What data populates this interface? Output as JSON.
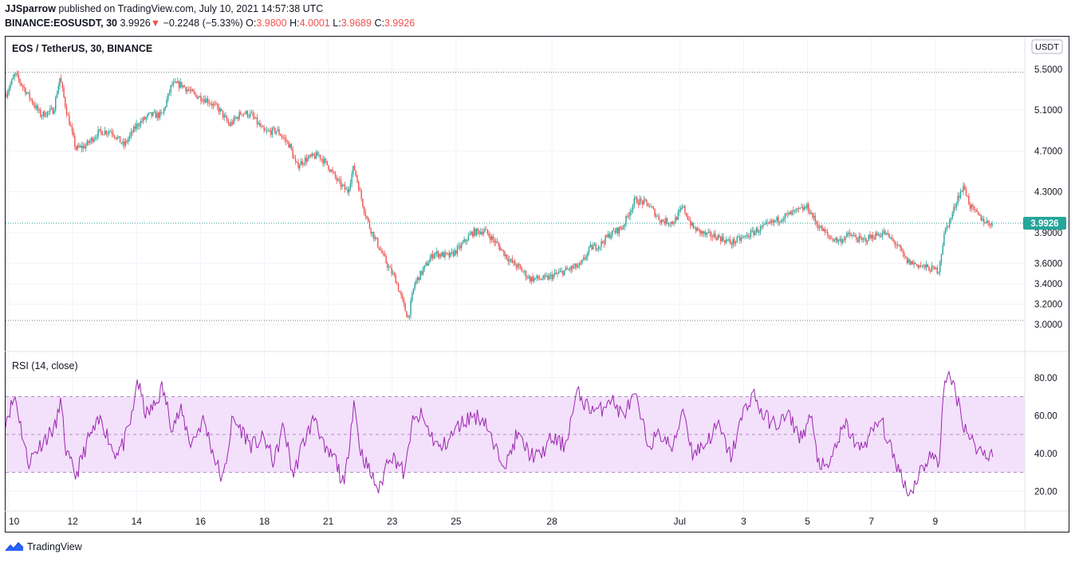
{
  "header": {
    "author": "JJSparrow",
    "published_text": "published on TradingView.com, July 10, 2021 14:57:38 UTC",
    "symbol_line": "BINANCE:EOSUSDT, 30",
    "last": "3.9926",
    "change_arrow": "▼",
    "change": "−0.2248 (−5.33%)",
    "o_label": "O:",
    "o": "3.9800",
    "h_label": "H:",
    "h": "4.0001",
    "l_label": "L:",
    "l": "3.9689",
    "c_label": "C:",
    "c": "3.9926"
  },
  "footer": {
    "brand": "TradingView"
  },
  "chart_data": [
    {
      "type": "candlestick",
      "title": "EOS / TetherUS, 30, BINANCE",
      "currency_badge": "USDT",
      "last_price_label": "3.9926",
      "ylim": [
        2.9,
        5.6
      ],
      "y_ticks": [
        "5.5000",
        "5.1000",
        "4.7000",
        "4.3000",
        "3.9000",
        "3.6000",
        "3.4000",
        "3.2000",
        "3.0000"
      ],
      "y_tick_values": [
        5.5,
        5.1,
        4.7,
        4.3,
        3.9,
        3.6,
        3.4,
        3.2,
        3.0
      ],
      "x_ticks": [
        "10",
        "12",
        "14",
        "16",
        "18",
        "21",
        "23",
        "25",
        "28",
        "Jul",
        "3",
        "5",
        "7",
        "9"
      ],
      "x_tick_days": [
        10,
        12,
        14,
        16,
        18,
        20,
        22,
        24,
        27,
        31,
        33,
        35,
        37,
        39
      ],
      "x_range_days": [
        9.9,
        41.8
      ],
      "high_line": 5.47,
      "low_line": 3.04,
      "colors": {
        "up": "#26a69a",
        "down": "#ef5350"
      },
      "price_path": [
        [
          9.9,
          5.25
        ],
        [
          10.2,
          5.45
        ],
        [
          10.5,
          5.3
        ],
        [
          11.0,
          5.05
        ],
        [
          11.4,
          5.1
        ],
        [
          11.6,
          5.42
        ],
        [
          11.8,
          5.1
        ],
        [
          12.1,
          4.72
        ],
        [
          12.4,
          4.75
        ],
        [
          12.8,
          4.88
        ],
        [
          13.2,
          4.9
        ],
        [
          13.6,
          4.75
        ],
        [
          14.0,
          4.95
        ],
        [
          14.4,
          5.05
        ],
        [
          14.8,
          5.05
        ],
        [
          15.1,
          5.35
        ],
        [
          15.4,
          5.35
        ],
        [
          15.8,
          5.25
        ],
        [
          16.2,
          5.2
        ],
        [
          16.6,
          5.1
        ],
        [
          16.9,
          4.95
        ],
        [
          17.3,
          5.08
        ],
        [
          17.6,
          5.05
        ],
        [
          18.0,
          4.88
        ],
        [
          18.4,
          4.9
        ],
        [
          18.8,
          4.75
        ],
        [
          19.0,
          4.55
        ],
        [
          19.3,
          4.62
        ],
        [
          19.7,
          4.66
        ],
        [
          20.0,
          4.55
        ],
        [
          20.3,
          4.4
        ],
        [
          20.6,
          4.3
        ],
        [
          20.8,
          4.55
        ],
        [
          21.1,
          4.15
        ],
        [
          21.3,
          3.95
        ],
        [
          21.6,
          3.75
        ],
        [
          21.9,
          3.55
        ],
        [
          22.1,
          3.45
        ],
        [
          22.4,
          3.15
        ],
        [
          22.5,
          3.06
        ],
        [
          22.7,
          3.4
        ],
        [
          22.9,
          3.5
        ],
        [
          23.3,
          3.7
        ],
        [
          23.8,
          3.67
        ],
        [
          24.1,
          3.75
        ],
        [
          24.5,
          3.9
        ],
        [
          24.9,
          3.92
        ],
        [
          25.3,
          3.78
        ],
        [
          25.7,
          3.62
        ],
        [
          26.0,
          3.55
        ],
        [
          26.3,
          3.45
        ],
        [
          26.8,
          3.45
        ],
        [
          27.2,
          3.5
        ],
        [
          27.6,
          3.55
        ],
        [
          27.9,
          3.58
        ],
        [
          28.2,
          3.75
        ],
        [
          28.5,
          3.78
        ],
        [
          28.8,
          3.88
        ],
        [
          29.2,
          3.95
        ],
        [
          29.6,
          4.22
        ],
        [
          30.0,
          4.18
        ],
        [
          30.4,
          4.02
        ],
        [
          30.8,
          4.0
        ],
        [
          31.1,
          4.15
        ],
        [
          31.4,
          3.95
        ],
        [
          31.8,
          3.88
        ],
        [
          32.2,
          3.86
        ],
        [
          32.6,
          3.8
        ],
        [
          33.0,
          3.85
        ],
        [
          33.4,
          3.92
        ],
        [
          33.8,
          3.98
        ],
        [
          34.2,
          4.05
        ],
        [
          34.6,
          4.1
        ],
        [
          35.0,
          4.15
        ],
        [
          35.3,
          3.98
        ],
        [
          35.7,
          3.85
        ],
        [
          36.0,
          3.82
        ],
        [
          36.3,
          3.88
        ],
        [
          36.7,
          3.82
        ],
        [
          37.0,
          3.86
        ],
        [
          37.4,
          3.9
        ],
        [
          37.8,
          3.78
        ],
        [
          38.1,
          3.62
        ],
        [
          38.5,
          3.58
        ],
        [
          38.8,
          3.55
        ],
        [
          39.1,
          3.53
        ],
        [
          39.3,
          3.92
        ],
        [
          39.5,
          4.05
        ],
        [
          39.7,
          4.25
        ],
        [
          39.9,
          4.35
        ],
        [
          40.1,
          4.15
        ],
        [
          40.4,
          4.05
        ],
        [
          40.6,
          4.0
        ],
        [
          40.8,
          3.99
        ]
      ],
      "candle_count": 720
    },
    {
      "type": "line",
      "title": "RSI (14, close)",
      "ylim": [
        10,
        90
      ],
      "y_ticks": [
        "80.00",
        "60.00",
        "40.00",
        "20.00"
      ],
      "y_tick_values": [
        80,
        60,
        40,
        20
      ],
      "bands": {
        "upper": 70,
        "middle": 50,
        "lower": 30
      },
      "colors": {
        "line": "#9c27b0",
        "band_fill": "#f3e0fb",
        "band_line": "#b28cc4"
      },
      "rsi_path": [
        [
          9.9,
          58
        ],
        [
          10.2,
          70
        ],
        [
          10.6,
          35
        ],
        [
          11.0,
          45
        ],
        [
          11.5,
          55
        ],
        [
          11.6,
          70
        ],
        [
          11.8,
          40
        ],
        [
          12.1,
          28
        ],
        [
          12.5,
          48
        ],
        [
          12.9,
          58
        ],
        [
          13.3,
          40
        ],
        [
          13.6,
          45
        ],
        [
          13.9,
          62
        ],
        [
          14.0,
          80
        ],
        [
          14.3,
          60
        ],
        [
          14.6,
          66
        ],
        [
          14.8,
          75
        ],
        [
          15.1,
          55
        ],
        [
          15.4,
          62
        ],
        [
          15.7,
          45
        ],
        [
          16.1,
          58
        ],
        [
          16.4,
          40
        ],
        [
          16.7,
          25
        ],
        [
          17.0,
          58
        ],
        [
          17.3,
          52
        ],
        [
          17.6,
          44
        ],
        [
          18.0,
          48
        ],
        [
          18.3,
          35
        ],
        [
          18.6,
          55
        ],
        [
          18.9,
          28
        ],
        [
          19.2,
          45
        ],
        [
          19.6,
          60
        ],
        [
          19.9,
          40
        ],
        [
          20.2,
          38
        ],
        [
          20.5,
          22
        ],
        [
          20.8,
          68
        ],
        [
          21.0,
          42
        ],
        [
          21.3,
          30
        ],
        [
          21.6,
          20
        ],
        [
          21.9,
          40
        ],
        [
          22.2,
          35
        ],
        [
          22.4,
          28
        ],
        [
          22.6,
          55
        ],
        [
          22.9,
          60
        ],
        [
          23.2,
          50
        ],
        [
          23.5,
          42
        ],
        [
          23.8,
          48
        ],
        [
          24.1,
          55
        ],
        [
          24.5,
          60
        ],
        [
          24.9,
          58
        ],
        [
          25.2,
          42
        ],
        [
          25.6,
          35
        ],
        [
          25.9,
          50
        ],
        [
          26.3,
          40
        ],
        [
          26.6,
          38
        ],
        [
          27.0,
          48
        ],
        [
          27.4,
          44
        ],
        [
          27.8,
          72
        ],
        [
          28.1,
          65
        ],
        [
          28.5,
          62
        ],
        [
          28.8,
          70
        ],
        [
          29.2,
          60
        ],
        [
          29.6,
          70
        ],
        [
          30.0,
          45
        ],
        [
          30.4,
          50
        ],
        [
          30.8,
          42
        ],
        [
          31.1,
          65
        ],
        [
          31.4,
          40
        ],
        [
          31.8,
          45
        ],
        [
          32.2,
          55
        ],
        [
          32.6,
          38
        ],
        [
          33.0,
          62
        ],
        [
          33.3,
          72
        ],
        [
          33.6,
          60
        ],
        [
          34.0,
          55
        ],
        [
          34.4,
          60
        ],
        [
          34.8,
          48
        ],
        [
          35.1,
          60
        ],
        [
          35.3,
          38
        ],
        [
          35.6,
          30
        ],
        [
          35.9,
          45
        ],
        [
          36.2,
          55
        ],
        [
          36.6,
          42
        ],
        [
          36.9,
          48
        ],
        [
          37.3,
          58
        ],
        [
          37.6,
          42
        ],
        [
          37.9,
          30
        ],
        [
          38.2,
          18
        ],
        [
          38.5,
          30
        ],
        [
          38.9,
          40
        ],
        [
          39.1,
          32
        ],
        [
          39.3,
          82
        ],
        [
          39.6,
          75
        ],
        [
          39.9,
          55
        ],
        [
          40.2,
          45
        ],
        [
          40.5,
          40
        ],
        [
          40.8,
          40
        ]
      ]
    }
  ]
}
